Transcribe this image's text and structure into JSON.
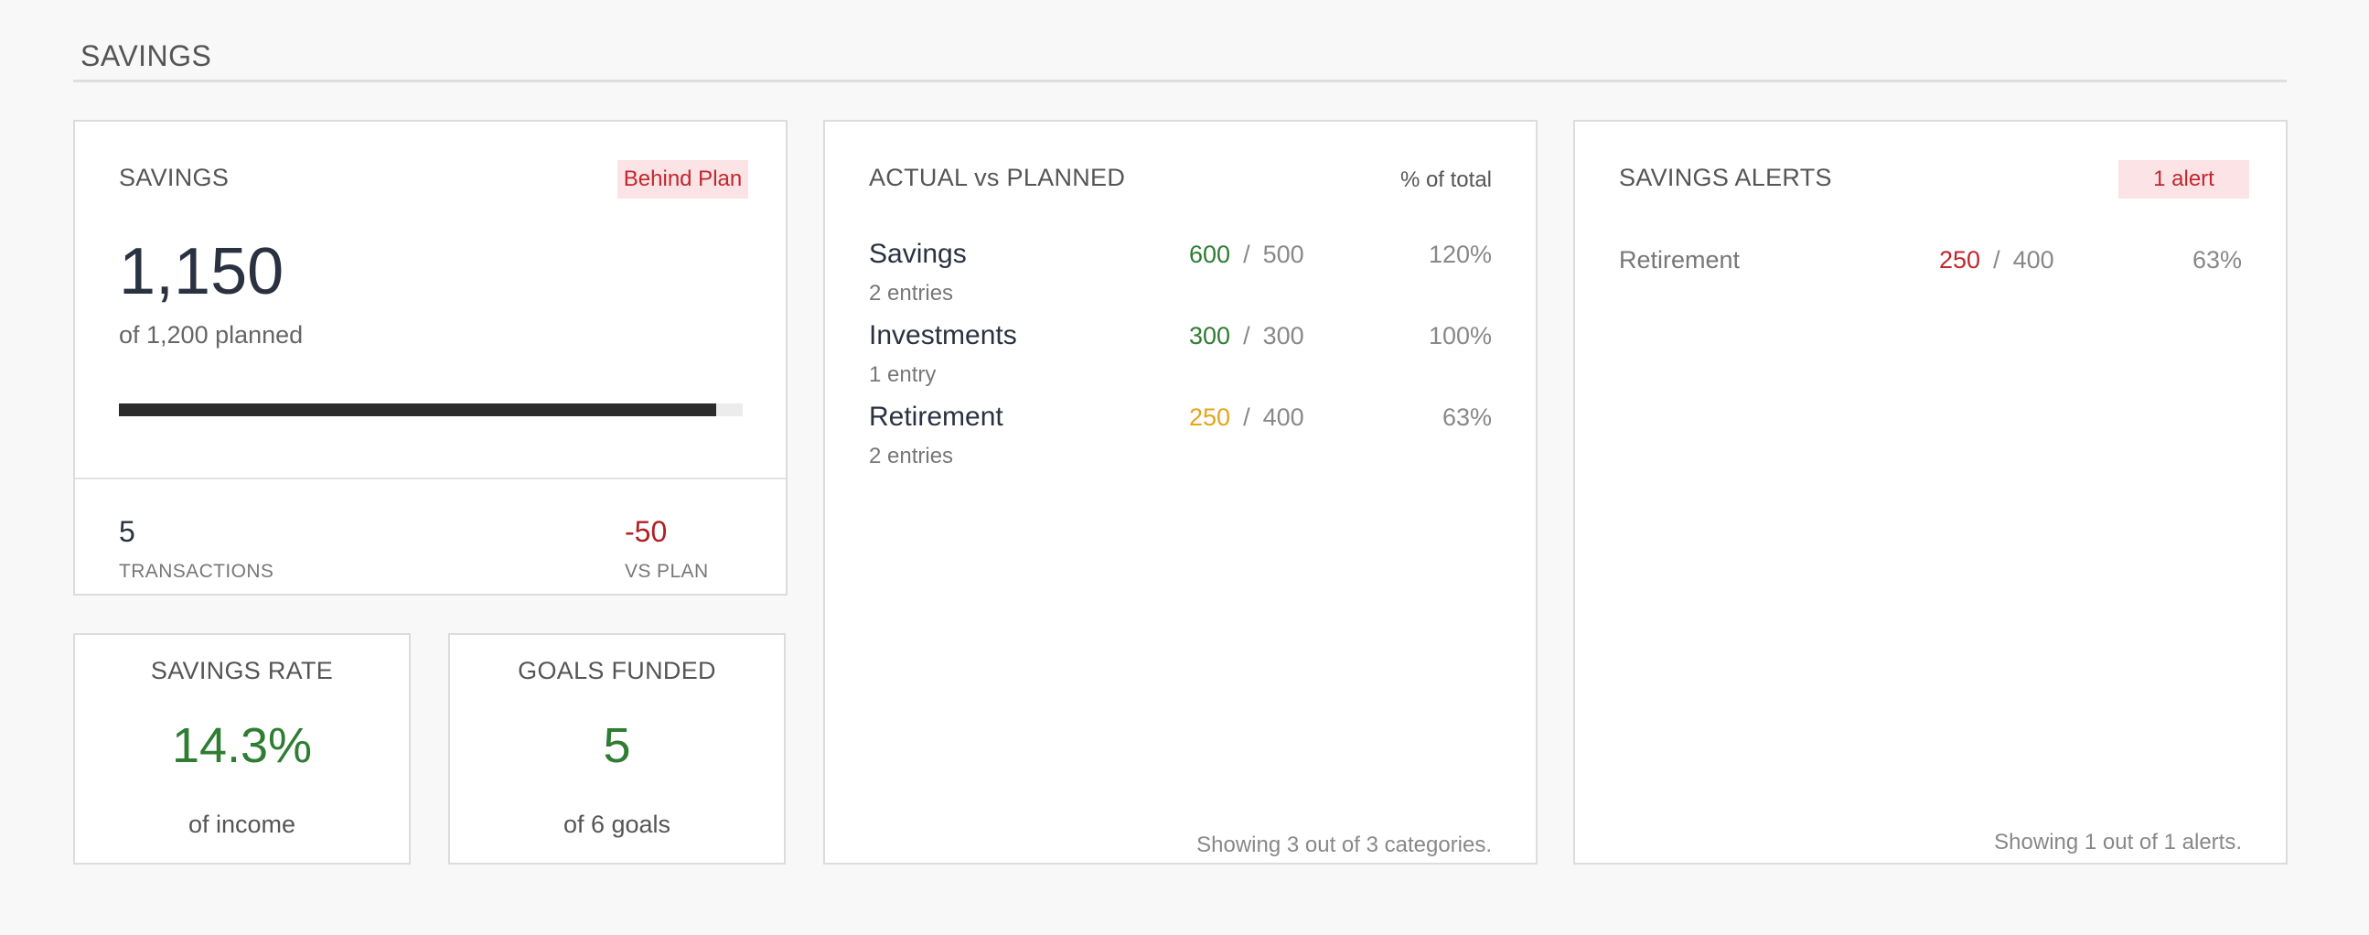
{
  "section": {
    "title": "SAVINGS"
  },
  "savings_card": {
    "label": "SAVINGS",
    "badge": "Behind Plan",
    "amount": "1,150",
    "planned_text": "of 1,200 planned",
    "progress_fraction": 0.958,
    "transactions_value": "5",
    "transactions_label": "TRANSACTIONS",
    "vs_plan_value": "-50",
    "vs_plan_label": "VS PLAN"
  },
  "savings_rate": {
    "title": "SAVINGS RATE",
    "value": "14.3%",
    "sub": "of income"
  },
  "goals_funded": {
    "title": "GOALS FUNDED",
    "value": "5",
    "sub": "of 6 goals"
  },
  "actual_vs_planned": {
    "title": "ACTUAL vs PLANNED",
    "column_label": "% of total",
    "rows": [
      {
        "name": "Savings",
        "entries": "2 entries",
        "actual": "600",
        "planned": "500",
        "pct": "120%",
        "status": "green"
      },
      {
        "name": "Investments",
        "entries": "1 entry",
        "actual": "300",
        "planned": "300",
        "pct": "100%",
        "status": "green"
      },
      {
        "name": "Retirement",
        "entries": "2 entries",
        "actual": "250",
        "planned": "400",
        "pct": "63%",
        "status": "orange"
      }
    ],
    "separator": "/",
    "footer": "Showing 3 out of 3 categories."
  },
  "alerts": {
    "title": "SAVINGS ALERTS",
    "badge": "1 alert",
    "items": [
      {
        "name": "Retirement",
        "actual": "250",
        "planned": "400",
        "pct": "63%"
      }
    ],
    "footer": "Showing 1 out of 1 alerts."
  },
  "colors": {
    "positive": "#2e7d32",
    "warning": "#e8a317",
    "negative": "#c1272d",
    "badge_bg": "#fbe3e6"
  }
}
